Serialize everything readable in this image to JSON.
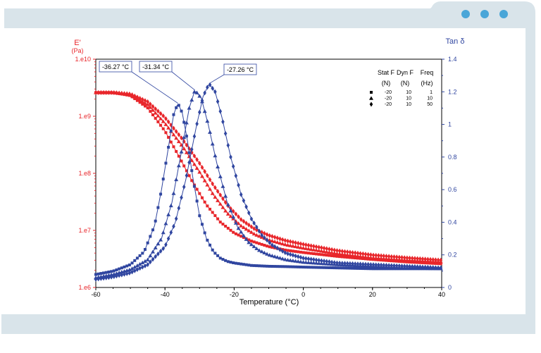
{
  "window": {
    "dots": [
      "dot-1",
      "dot-2",
      "dot-3"
    ]
  },
  "chart_data": {
    "type": "scatter",
    "xlabel": "Temperature (°C)",
    "x_ticks": [
      -60,
      -40,
      -20,
      0,
      20,
      40
    ],
    "xlim": [
      -60,
      40
    ],
    "left_axis": {
      "label": "E'",
      "unit": "(Pa)",
      "scale": "log",
      "ylim": [
        1000000,
        10000000000
      ],
      "tick_labels": [
        "1.e6",
        "1.e7",
        "1.e8",
        "1.e9",
        "1.e10"
      ],
      "color": "#e8262b"
    },
    "right_axis": {
      "label": "Tan δ",
      "scale": "linear",
      "ylim": [
        0,
        1.4
      ],
      "tick_labels": [
        "0",
        "0.2",
        "0.4",
        "0.6",
        "0.8",
        "1",
        "1.2",
        "1.4"
      ],
      "color": "#3046a0"
    },
    "legend": {
      "position": "top-right",
      "headers": [
        "Stat F",
        "Dyn F",
        "Freq"
      ],
      "units": [
        "(N)",
        "(N)",
        "(Hz)"
      ],
      "rows": [
        {
          "marker": "square",
          "stat_f": "-20",
          "dyn_f": "10",
          "freq": "1"
        },
        {
          "marker": "triangle",
          "stat_f": "-20",
          "dyn_f": "10",
          "freq": "10"
        },
        {
          "marker": "diamond",
          "stat_f": "-20",
          "dyn_f": "10",
          "freq": "50"
        }
      ]
    },
    "annotations": [
      {
        "text": "-36.27 °C",
        "x": -36.27,
        "tan_delta": 1.13
      },
      {
        "text": "-31.34 °C",
        "x": -31.34,
        "tan_delta": 1.21
      },
      {
        "text": "-27.26 °C",
        "x": -27.26,
        "tan_delta": 1.25
      }
    ],
    "series": [
      {
        "marker": "square",
        "freq_hz": 1,
        "quantity": "E'",
        "x": [
          -60,
          -55,
          -50,
          -45,
          -40,
          -36,
          -32,
          -28,
          -24,
          -20,
          -15,
          -10,
          -5,
          0,
          10,
          20,
          30,
          40
        ],
        "y": [
          2600000000.0,
          2600000000.0,
          2300000000.0,
          1400000000.0,
          550000000.0,
          200000000.0,
          70000000.0,
          28000000.0,
          14000000.0,
          9000000.0,
          6500000.0,
          5200000.0,
          4500000.0,
          4100000.0,
          3500000.0,
          3100000.0,
          2800000.0,
          2600000.0
        ]
      },
      {
        "marker": "triangle",
        "freq_hz": 10,
        "quantity": "E'",
        "x": [
          -60,
          -55,
          -50,
          -45,
          -40,
          -35,
          -30,
          -26,
          -22,
          -18,
          -14,
          -10,
          -5,
          0,
          10,
          20,
          30,
          40
        ],
        "y": [
          2600000000.0,
          2600000000.0,
          2400000000.0,
          1600000000.0,
          750000000.0,
          300000000.0,
          105000000.0,
          42000000.0,
          20000000.0,
          12000000.0,
          8500000.0,
          6800000.0,
          5600000.0,
          4900000.0,
          3900000.0,
          3300000.0,
          3000000.0,
          2800000.0
        ]
      },
      {
        "marker": "diamond",
        "freq_hz": 50,
        "quantity": "E'",
        "x": [
          -60,
          -55,
          -50,
          -45,
          -40,
          -35,
          -30,
          -26,
          -22,
          -18,
          -14,
          -10,
          -5,
          0,
          10,
          20,
          30,
          40
        ],
        "y": [
          2600000000.0,
          2600000000.0,
          2450000000.0,
          1800000000.0,
          950000000.0,
          400000000.0,
          150000000.0,
          62000000.0,
          28000000.0,
          15500000.0,
          10500000.0,
          8200000.0,
          6600000.0,
          5700000.0,
          4400000.0,
          3700000.0,
          3300000.0,
          3000000.0
        ]
      },
      {
        "marker": "square",
        "freq_hz": 1,
        "quantity": "tan_delta",
        "x": [
          -60,
          -55,
          -50,
          -46,
          -43,
          -41,
          -39,
          -37.5,
          -36.27,
          -35,
          -33.5,
          -32,
          -30,
          -28,
          -26,
          -24,
          -22,
          -20,
          -15,
          -10,
          -5,
          0,
          10,
          20,
          30,
          40
        ],
        "y": [
          0.08,
          0.1,
          0.14,
          0.22,
          0.38,
          0.6,
          0.86,
          1.06,
          1.13,
          1.07,
          0.9,
          0.68,
          0.44,
          0.3,
          0.22,
          0.18,
          0.16,
          0.15,
          0.135,
          0.13,
          0.128,
          0.125,
          0.12,
          0.115,
          0.115,
          0.115
        ]
      },
      {
        "marker": "triangle",
        "freq_hz": 10,
        "quantity": "tan_delta",
        "x": [
          -60,
          -55,
          -50,
          -45,
          -41,
          -38,
          -35,
          -33,
          -31.34,
          -29.5,
          -27.5,
          -25,
          -22,
          -19,
          -16,
          -13,
          -10,
          -5,
          0,
          10,
          20,
          30,
          40
        ],
        "y": [
          0.06,
          0.08,
          0.11,
          0.17,
          0.3,
          0.52,
          0.86,
          1.1,
          1.21,
          1.16,
          1.0,
          0.76,
          0.52,
          0.37,
          0.28,
          0.23,
          0.2,
          0.17,
          0.155,
          0.14,
          0.13,
          0.12,
          0.115
        ]
      },
      {
        "marker": "diamond",
        "freq_hz": 50,
        "quantity": "tan_delta",
        "x": [
          -60,
          -55,
          -50,
          -45,
          -40,
          -37,
          -34,
          -31,
          -29,
          -27.26,
          -25.5,
          -23.5,
          -21,
          -18,
          -15,
          -12,
          -9,
          -5,
          0,
          10,
          20,
          30,
          40
        ],
        "y": [
          0.05,
          0.065,
          0.09,
          0.14,
          0.25,
          0.4,
          0.66,
          0.98,
          1.17,
          1.25,
          1.2,
          1.04,
          0.8,
          0.57,
          0.42,
          0.32,
          0.26,
          0.21,
          0.18,
          0.15,
          0.14,
          0.13,
          0.12
        ]
      }
    ]
  }
}
